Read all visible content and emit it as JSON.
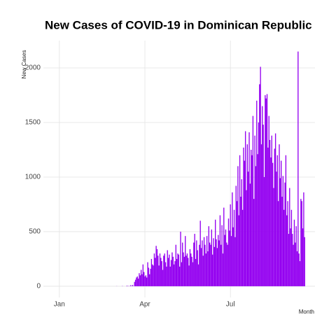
{
  "chart_data": {
    "type": "bar",
    "title": "New Cases of COVID-19 in Dominican Republic",
    "ylabel": "New Cases",
    "xlabel": "Month",
    "color": "#9400f0",
    "grid": true,
    "xlim": [
      -16,
      273
    ],
    "ylim": [
      -103,
      2250
    ],
    "xticks": [
      {
        "value": 1,
        "label": "Jan"
      },
      {
        "value": 92,
        "label": "Apr"
      },
      {
        "value": 183,
        "label": "Jul"
      }
    ],
    "yticks": [
      0,
      500,
      1000,
      1500,
      2000
    ],
    "x": [
      61,
      62,
      63,
      64,
      65,
      66,
      67,
      68,
      69,
      70,
      71,
      72,
      73,
      74,
      75,
      76,
      77,
      78,
      79,
      80,
      81,
      82,
      83,
      84,
      85,
      86,
      87,
      88,
      89,
      90,
      91,
      92,
      93,
      94,
      95,
      96,
      97,
      98,
      99,
      100,
      101,
      102,
      103,
      104,
      105,
      106,
      107,
      108,
      109,
      110,
      111,
      112,
      113,
      114,
      115,
      116,
      117,
      118,
      119,
      120,
      121,
      122,
      123,
      124,
      125,
      126,
      127,
      128,
      129,
      130,
      131,
      132,
      133,
      134,
      135,
      136,
      137,
      138,
      139,
      140,
      141,
      142,
      143,
      144,
      145,
      146,
      147,
      148,
      149,
      150,
      151,
      152,
      153,
      154,
      155,
      156,
      157,
      158,
      159,
      160,
      161,
      162,
      163,
      164,
      165,
      166,
      167,
      168,
      169,
      170,
      171,
      172,
      173,
      174,
      175,
      176,
      177,
      178,
      179,
      180,
      181,
      182,
      183,
      184,
      185,
      186,
      187,
      188,
      189,
      190,
      191,
      192,
      193,
      194,
      195,
      196,
      197,
      198,
      199,
      200,
      201,
      202,
      203,
      204,
      205,
      206,
      207,
      208,
      209,
      210,
      211,
      212,
      213,
      214,
      215,
      216,
      217,
      218,
      219,
      220,
      221,
      222,
      223,
      224,
      225,
      226,
      227,
      228,
      229,
      230,
      231,
      232,
      233,
      234,
      235,
      236,
      237,
      238,
      239,
      240,
      241,
      242,
      243,
      244,
      245,
      246,
      247,
      248,
      249,
      250,
      251,
      252,
      253,
      254,
      255,
      256,
      257,
      258,
      259,
      260,
      261,
      262
    ],
    "values": [
      0,
      1,
      0,
      0,
      0,
      0,
      0,
      2,
      0,
      0,
      0,
      0,
      5,
      0,
      3,
      0,
      10,
      0,
      12,
      0,
      40,
      60,
      80,
      90,
      70,
      120,
      100,
      150,
      110,
      200,
      130,
      90,
      100,
      80,
      220,
      170,
      110,
      160,
      250,
      200,
      190,
      300,
      260,
      370,
      340,
      280,
      190,
      300,
      260,
      230,
      150,
      280,
      300,
      220,
      180,
      330,
      260,
      290,
      180,
      240,
      310,
      270,
      200,
      230,
      380,
      250,
      300,
      290,
      180,
      500,
      220,
      400,
      310,
      270,
      460,
      280,
      300,
      260,
      190,
      340,
      300,
      270,
      220,
      400,
      480,
      250,
      420,
      330,
      200,
      380,
      600,
      350,
      420,
      280,
      450,
      380,
      300,
      460,
      320,
      550,
      400,
      380,
      520,
      290,
      440,
      360,
      610,
      430,
      350,
      470,
      420,
      650,
      380,
      560,
      300,
      720,
      470,
      520,
      400,
      380,
      620,
      510,
      750,
      460,
      860,
      540,
      700,
      450,
      920,
      780,
      1100,
      650,
      1200,
      820,
      980,
      700,
      1270,
      1150,
      1420,
      880,
      1300,
      1050,
      1410,
      940,
      1250,
      1200,
      1560,
      800,
      1380,
      1100,
      1700,
      1210,
      1500,
      1850,
      2010,
      1300,
      1650,
      1480,
      1000,
      1750,
      1720,
      1760,
      1270,
      1560,
      1340,
      1180,
      1380,
      1130,
      900,
      1260,
      1400,
      1050,
      1200,
      780,
      1300,
      990,
      1150,
      820,
      1010,
      700,
      950,
      1200,
      650,
      780,
      480,
      900,
      530,
      700,
      480,
      380,
      610,
      400,
      550,
      320,
      2150,
      300,
      230,
      800,
      780,
      530,
      860,
      450
    ]
  }
}
